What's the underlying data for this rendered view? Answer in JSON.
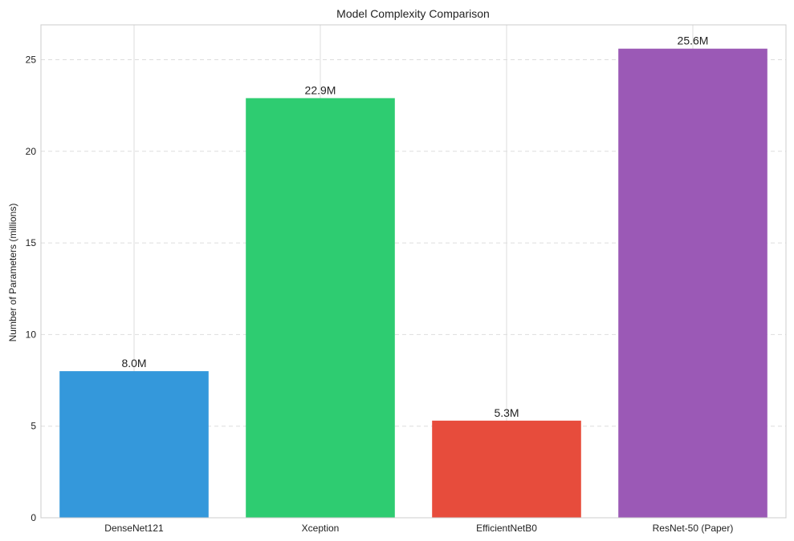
{
  "chart_data": {
    "type": "bar",
    "title": "Model Complexity Comparison",
    "xlabel": "",
    "ylabel": "Number of Parameters (millions)",
    "categories": [
      "DenseNet121",
      "Xception",
      "EfficientNetB0",
      "ResNet-50 (Paper)"
    ],
    "values": [
      8.0,
      22.9,
      5.3,
      25.6
    ],
    "data_labels": [
      "8.0M",
      "22.9M",
      "5.3M",
      "25.6M"
    ],
    "colors": [
      "#3498db",
      "#2ecc71",
      "#e74c3c",
      "#9b59b6"
    ],
    "ylim": [
      0,
      26.9
    ],
    "yticks": [
      0,
      5,
      10,
      15,
      20,
      25
    ],
    "grid": true,
    "legend": "none"
  }
}
